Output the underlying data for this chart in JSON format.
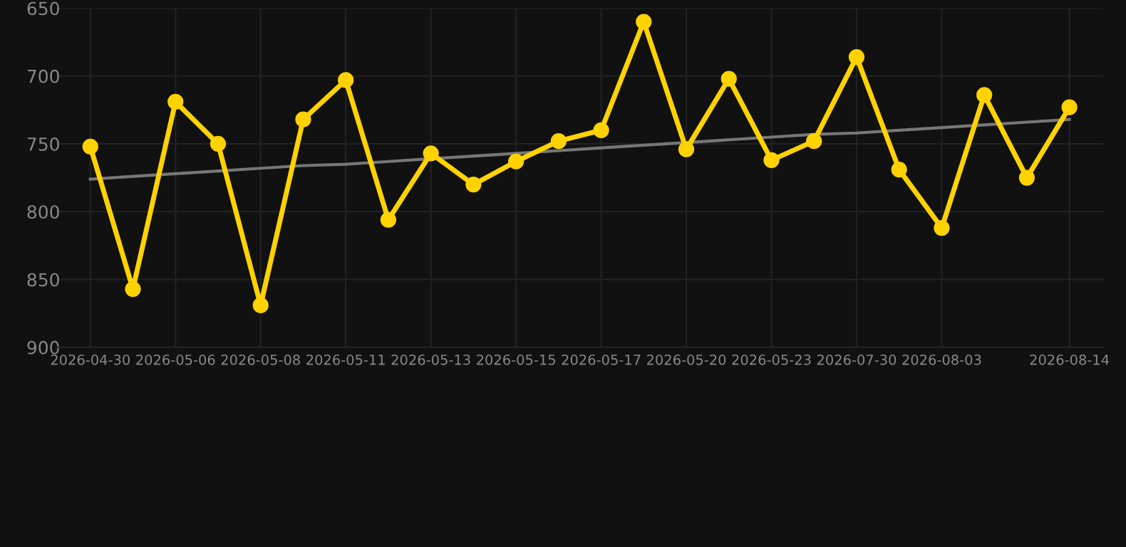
{
  "chart_data": {
    "type": "line",
    "categories": [
      "2026-04-30",
      null,
      "2026-05-06",
      null,
      "2026-05-08",
      null,
      "2026-05-11",
      null,
      "2026-05-13",
      null,
      "2026-05-15",
      null,
      "2026-05-17",
      null,
      "2026-05-20",
      null,
      "2026-05-23",
      null,
      "2026-07-30",
      null,
      "2026-08-03",
      null,
      null,
      "2026-08-14"
    ],
    "series": [
      {
        "color": "#ffd200",
        "marker": "circle",
        "values": [
          752,
          857,
          719,
          750,
          869,
          732,
          703,
          806,
          757,
          780,
          763,
          748,
          740,
          660,
          754,
          702,
          762,
          748,
          686,
          769,
          812,
          714,
          775,
          723
        ]
      },
      {
        "type": "line",
        "color": "#777777",
        "marker": "none",
        "values": [
          776,
          774,
          772,
          770,
          768,
          766,
          765,
          763,
          761,
          759,
          757,
          755,
          753,
          751,
          749,
          747,
          745,
          743,
          742,
          740,
          738,
          736,
          734,
          732
        ]
      }
    ],
    "ylim": [
      900,
      650
    ],
    "yticks": [
      650,
      700,
      750,
      800,
      850,
      900
    ],
    "grid": true,
    "line_style": "solid",
    "legend": false
  }
}
